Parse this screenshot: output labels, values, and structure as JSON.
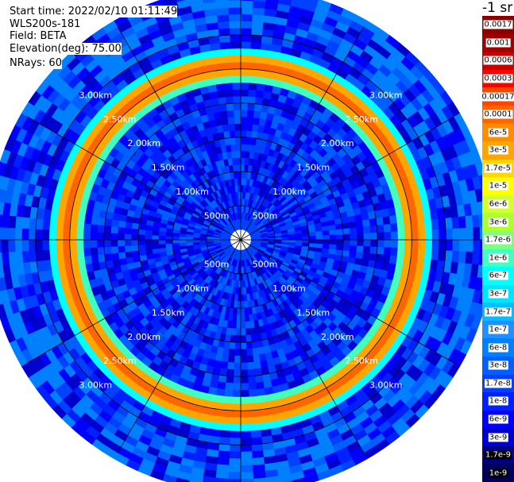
{
  "info": {
    "start_time": "Start time: 2022/02/10 01:11:49",
    "instrument": "WLS200s-181",
    "field": "Field: BETA",
    "elevation": "Elevation(deg): 75.00",
    "nrays": "NRays: 60"
  },
  "colorbar": {
    "title": "-1 sr",
    "labels": [
      "0.0017",
      "0.001",
      "0.0006",
      "0.0003",
      "0.00017",
      "0.0001",
      "6e-5",
      "3e-5",
      "1.7e-5",
      "1e-5",
      "6e-6",
      "3e-6",
      "1.7e-6",
      "1e-6",
      "6e-7",
      "3e-7",
      "1.7e-7",
      "1e-7",
      "6e-8",
      "3e-8",
      "1.7e-8",
      "1e-8",
      "6e-9",
      "3e-9",
      "1.7e-9",
      "1e-9"
    ],
    "colors": [
      "#8b0000",
      "#a00000",
      "#c80000",
      "#ff0000",
      "#ff4500",
      "#ff6600",
      "#ff8c00",
      "#ffa500",
      "#ffd700",
      "#ffff00",
      "#d4ff2a",
      "#adff2f",
      "#7fff7f",
      "#40ffbf",
      "#00ffff",
      "#00e5ff",
      "#00bfff",
      "#1e90ff",
      "#0080ff",
      "#0060ff",
      "#0040ff",
      "#0020ff",
      "#0000ff",
      "#0000cd",
      "#00008b",
      "#000060"
    ]
  },
  "chart_data": {
    "type": "polar-ppi",
    "field": "BETA",
    "units": "-1 sr",
    "nrays": 60,
    "elevation_deg": 75.0,
    "range_rings_km": [
      0.5,
      1.0,
      1.5,
      2.0,
      2.5,
      3.0
    ],
    "range_labels": [
      "500m",
      "1.00km",
      "1.50km",
      "2.00km",
      "2.50km",
      "3.00km"
    ],
    "max_range_km": 3.6,
    "background_beta": 1e-08,
    "enhanced_layer": {
      "ranges_km": [
        2.35,
        2.45,
        2.55,
        2.65,
        2.75
      ],
      "beta": [
        1e-06,
        3e-05,
        0.0001,
        3e-05,
        6e-07
      ]
    }
  }
}
